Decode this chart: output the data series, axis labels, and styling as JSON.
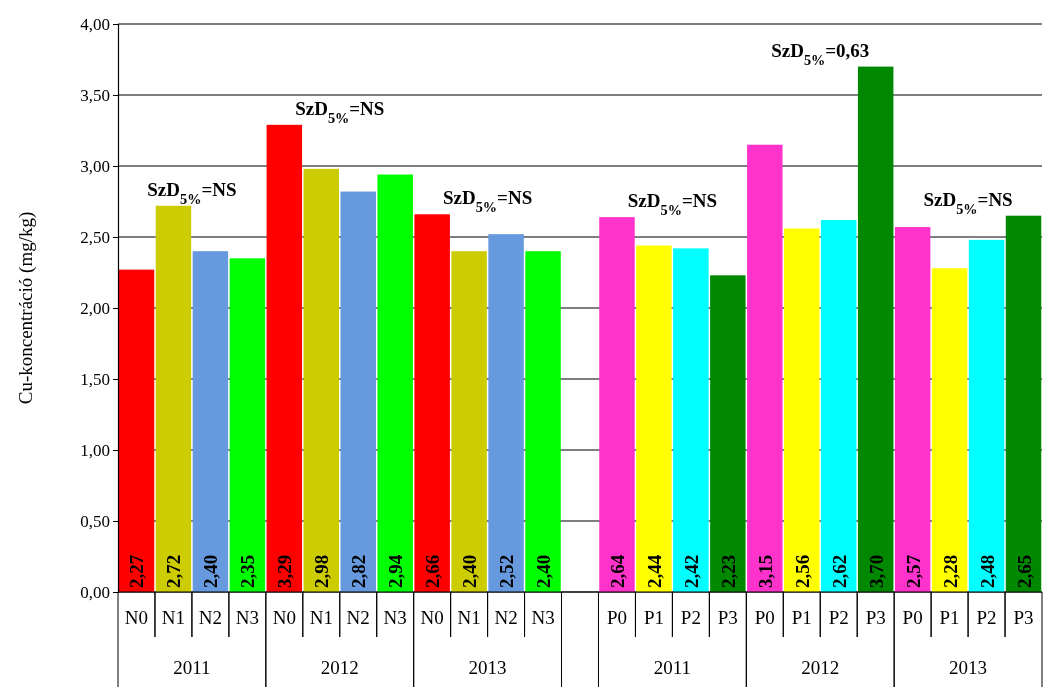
{
  "chart_data": {
    "type": "bar",
    "ylabel": "Cu-koncentráció  (mg/kg)",
    "categories": [
      "N0",
      "N1",
      "N2",
      "N3",
      "N0",
      "N1",
      "N2",
      "N3",
      "N0",
      "N1",
      "N2",
      "N3",
      null,
      "P0",
      "P1",
      "P2",
      "P3",
      "P0",
      "P1",
      "P2",
      "P3",
      "P0",
      "P1",
      "P2",
      "P3"
    ],
    "values": [
      2.27,
      2.72,
      2.4,
      2.35,
      3.29,
      2.98,
      2.82,
      2.94,
      2.66,
      2.4,
      2.52,
      2.4,
      null,
      2.64,
      2.44,
      2.42,
      2.23,
      3.15,
      2.56,
      2.62,
      3.7,
      2.57,
      2.28,
      2.48,
      2.65
    ],
    "value_labels": [
      "2,27",
      "2,72",
      "2,40",
      "2,35",
      "3,29",
      "2,98",
      "2,82",
      "2,94",
      "2,66",
      "2,40",
      "2,52",
      "2,40",
      null,
      "2,64",
      "2,44",
      "2,42",
      "2,23",
      "3,15",
      "2,56",
      "2,62",
      "3,70",
      "2,57",
      "2,28",
      "2,48",
      "2,65"
    ],
    "colors": [
      "#ff0000",
      "#cccc00",
      "#6699dd",
      "#00ff00",
      "#ff0000",
      "#cccc00",
      "#6699dd",
      "#00ff00",
      "#ff0000",
      "#cccc00",
      "#6699dd",
      "#00ff00",
      null,
      "#ff33cc",
      "#ffff00",
      "#00ffff",
      "#008800",
      "#ff33cc",
      "#ffff00",
      "#00ffff",
      "#008800",
      "#ff33cc",
      "#ffff00",
      "#00ffff",
      "#008800"
    ],
    "ylim": [
      0,
      4
    ],
    "yticks": [
      {
        "value": 0,
        "label": "0,00"
      },
      {
        "value": 0.5,
        "label": "0,50"
      },
      {
        "value": 1,
        "label": "1,00"
      },
      {
        "value": 1.5,
        "label": "1,50"
      },
      {
        "value": 2,
        "label": "2,00"
      },
      {
        "value": 2.5,
        "label": "2,50"
      },
      {
        "value": 3,
        "label": "3,00"
      },
      {
        "value": 3.5,
        "label": "3,50"
      },
      {
        "value": 4,
        "label": "4,00"
      }
    ],
    "grid": "y",
    "annotations": [
      "SzD$_{5%}$=NS",
      "SzD$_{5%}$=NS",
      "SzD$_{5%}$=NS",
      "SzD$_{5%}$=NS",
      "SzD$_{5%}$=0,63",
      "SzD$_{5%}$=NS",
      "2011",
      "2012",
      "2013",
      "2011",
      "2012",
      "2013"
    ]
  }
}
